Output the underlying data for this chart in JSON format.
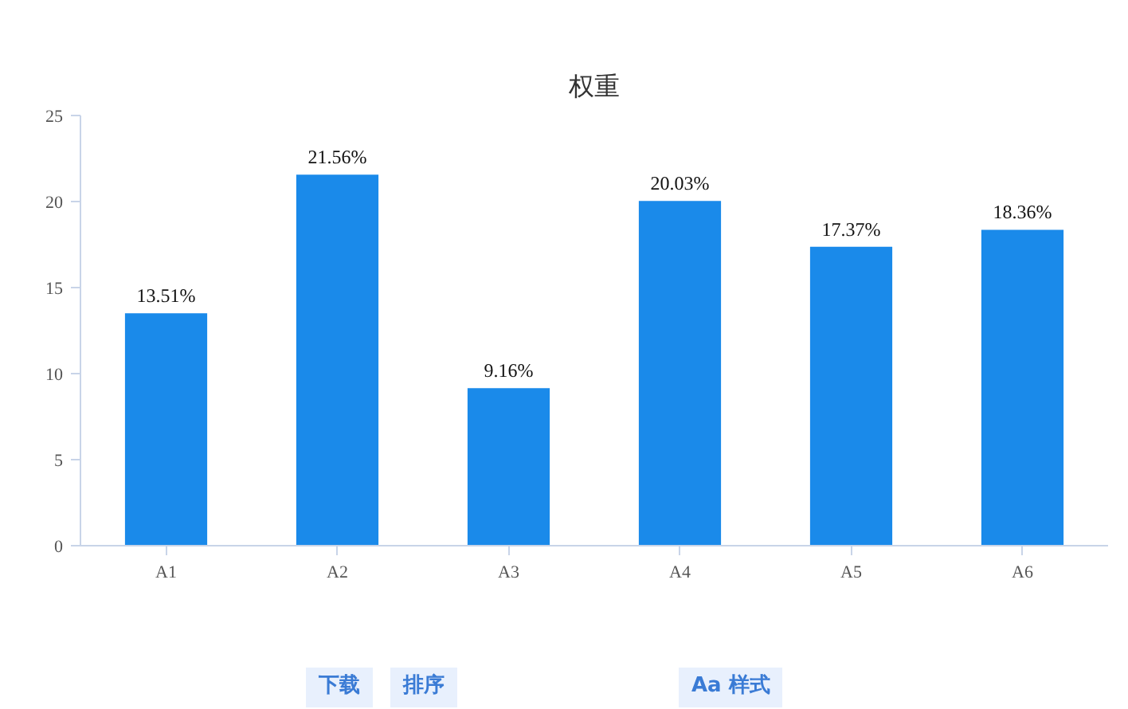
{
  "chart_data": {
    "type": "bar",
    "title": "权重",
    "categories": [
      "A1",
      "A2",
      "A3",
      "A4",
      "A5",
      "A6"
    ],
    "values": [
      13.51,
      21.56,
      9.16,
      20.03,
      17.37,
      18.36
    ],
    "value_labels": [
      "13.51%",
      "21.56%",
      "9.16%",
      "20.03%",
      "17.37%",
      "18.36%"
    ],
    "color": "#1a8aea",
    "ylim": [
      0,
      25
    ],
    "yticks": [
      0,
      5,
      10,
      15,
      20,
      25
    ],
    "grid": false,
    "annotations": [
      "下载",
      "排序",
      "Aa 样式"
    ]
  }
}
